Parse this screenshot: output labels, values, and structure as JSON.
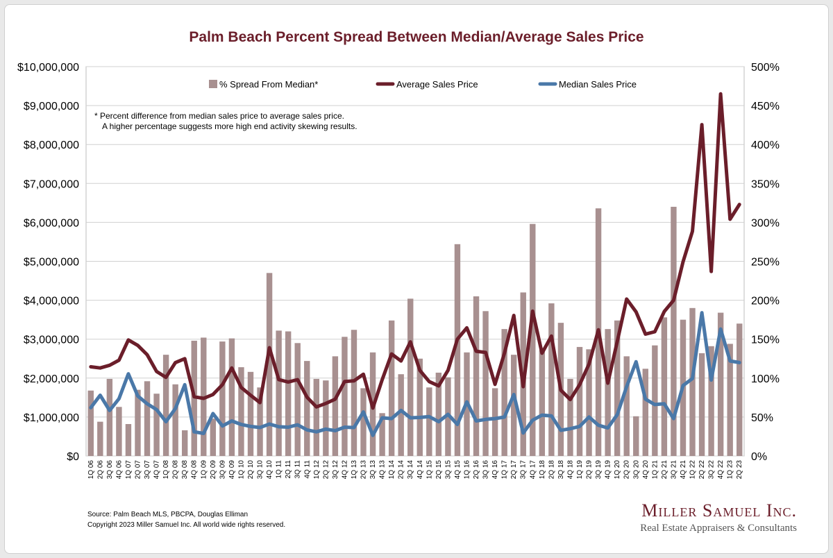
{
  "title": "Palm Beach Percent Spread Between Median/Average Sales Price",
  "footnote": {
    "line1": "*  Percent difference from median sales price to average sales price.",
    "line2": "A higher percentage suggests more high end activity skewing results."
  },
  "source": {
    "line1": "Source: Palm Beach MLS, PBCPA, Douglas Elliman",
    "line2": "Copyright 2023 Miller Samuel Inc.  All world wide rights reserved."
  },
  "brand": {
    "name": "Miller Samuel Inc.",
    "tagline": "Real Estate Appraisers & Consultants"
  },
  "colors": {
    "bars": "#a89090",
    "average": "#6b1e2a",
    "median": "#4a78a8",
    "grid": "#d0d0d0",
    "title": "#6b1e2a"
  },
  "chart_data": {
    "type": "bar",
    "title": "Palm Beach Percent Spread Between Median/Average Sales Price",
    "legend_position": "top",
    "grid": true,
    "categories": [
      "1Q 06",
      "2Q 06",
      "3Q 06",
      "4Q 06",
      "1Q 07",
      "2Q 07",
      "3Q 07",
      "4Q 07",
      "1Q 08",
      "2Q 08",
      "3Q 08",
      "4Q 08",
      "1Q 09",
      "2Q 09",
      "3Q 09",
      "4Q 09",
      "1Q 10",
      "2Q 10",
      "3Q 10",
      "4Q 10",
      "1Q 11",
      "2Q 11",
      "3Q 11",
      "4Q 11",
      "1Q 12",
      "2Q 12",
      "3Q 12",
      "4Q 12",
      "1Q 13",
      "2Q 13",
      "3Q 13",
      "4Q 13",
      "1Q 14",
      "2Q 14",
      "3Q 14",
      "4Q 14",
      "1Q 15",
      "2Q 15",
      "3Q 15",
      "4Q 15",
      "1Q 16",
      "2Q 16",
      "3Q 16",
      "4Q 16",
      "1Q 17",
      "2Q 17",
      "3Q 17",
      "4Q 17",
      "1Q 18",
      "2Q 18",
      "3Q 18",
      "4Q 18",
      "1Q 19",
      "2Q 19",
      "3Q 19",
      "4Q 19",
      "1Q 20",
      "2Q 20",
      "3Q 20",
      "4Q 20",
      "1Q 21",
      "2Q 21",
      "3Q 21",
      "4Q 21",
      "1Q 22",
      "2Q 22",
      "3Q 22",
      "4Q 22",
      "1Q 23",
      "2Q 23"
    ],
    "y_left": {
      "ylim": [
        0,
        10000000
      ],
      "ticks": [
        "$0",
        "$1,000,000",
        "$2,000,000",
        "$3,000,000",
        "$4,000,000",
        "$5,000,000",
        "$6,000,000",
        "$7,000,000",
        "$8,000,000",
        "$9,000,000",
        "$10,000,000"
      ]
    },
    "y_right": {
      "ylim": [
        0,
        500
      ],
      "ticks": [
        "0%",
        "50%",
        "100%",
        "150%",
        "200%",
        "250%",
        "300%",
        "350%",
        "400%",
        "450%",
        "500%"
      ]
    },
    "series": [
      {
        "name": "% Spread From Median*",
        "type": "bar",
        "axis": "right",
        "values": [
          84,
          44,
          99,
          63,
          41,
          85,
          96,
          80,
          130,
          92,
          33,
          148,
          152,
          48,
          147,
          151,
          114,
          108,
          88,
          235,
          161,
          160,
          145,
          122,
          99,
          97,
          128,
          153,
          162,
          87,
          133,
          55,
          174,
          105,
          202,
          125,
          88,
          107,
          101,
          272,
          133,
          205,
          186,
          87,
          163,
          130,
          210,
          298,
          136,
          196,
          171,
          99,
          140,
          137,
          318,
          163,
          174,
          128,
          51,
          112,
          142,
          178,
          320,
          175,
          190,
          132,
          141,
          184,
          144,
          170
        ]
      },
      {
        "name": "Average Sales Price",
        "type": "line",
        "axis": "left",
        "values": [
          2290000,
          2260000,
          2330000,
          2460000,
          2980000,
          2840000,
          2600000,
          2170000,
          2020000,
          2400000,
          2500000,
          1520000,
          1480000,
          1580000,
          1830000,
          2260000,
          1760000,
          1560000,
          1370000,
          2780000,
          1960000,
          1900000,
          1960000,
          1510000,
          1260000,
          1350000,
          1460000,
          1910000,
          1930000,
          2100000,
          1230000,
          1960000,
          2620000,
          2440000,
          2930000,
          2200000,
          1910000,
          1800000,
          2200000,
          3000000,
          3290000,
          2690000,
          2660000,
          1840000,
          2640000,
          3610000,
          1780000,
          3720000,
          2640000,
          3080000,
          1690000,
          1450000,
          1830000,
          2360000,
          3240000,
          1870000,
          2940000,
          4030000,
          3700000,
          3130000,
          3190000,
          3710000,
          4000000,
          4990000,
          5770000,
          8510000,
          4740000,
          9300000,
          6080000,
          6460000
        ]
      },
      {
        "name": "Median Sales Price",
        "type": "line",
        "axis": "left",
        "values": [
          1240000,
          1560000,
          1170000,
          1470000,
          2110000,
          1540000,
          1340000,
          1190000,
          880000,
          1220000,
          1830000,
          620000,
          580000,
          1090000,
          770000,
          900000,
          810000,
          760000,
          730000,
          820000,
          750000,
          740000,
          800000,
          670000,
          620000,
          690000,
          650000,
          740000,
          730000,
          1130000,
          530000,
          980000,
          960000,
          1170000,
          980000,
          990000,
          1010000,
          880000,
          1070000,
          810000,
          1390000,
          900000,
          940000,
          960000,
          1000000,
          1580000,
          590000,
          920000,
          1050000,
          1030000,
          660000,
          700000,
          760000,
          1000000,
          790000,
          720000,
          1060000,
          1780000,
          2420000,
          1460000,
          1320000,
          1340000,
          960000,
          1810000,
          1990000,
          3680000,
          1950000,
          3260000,
          2440000,
          2400000
        ]
      }
    ]
  }
}
